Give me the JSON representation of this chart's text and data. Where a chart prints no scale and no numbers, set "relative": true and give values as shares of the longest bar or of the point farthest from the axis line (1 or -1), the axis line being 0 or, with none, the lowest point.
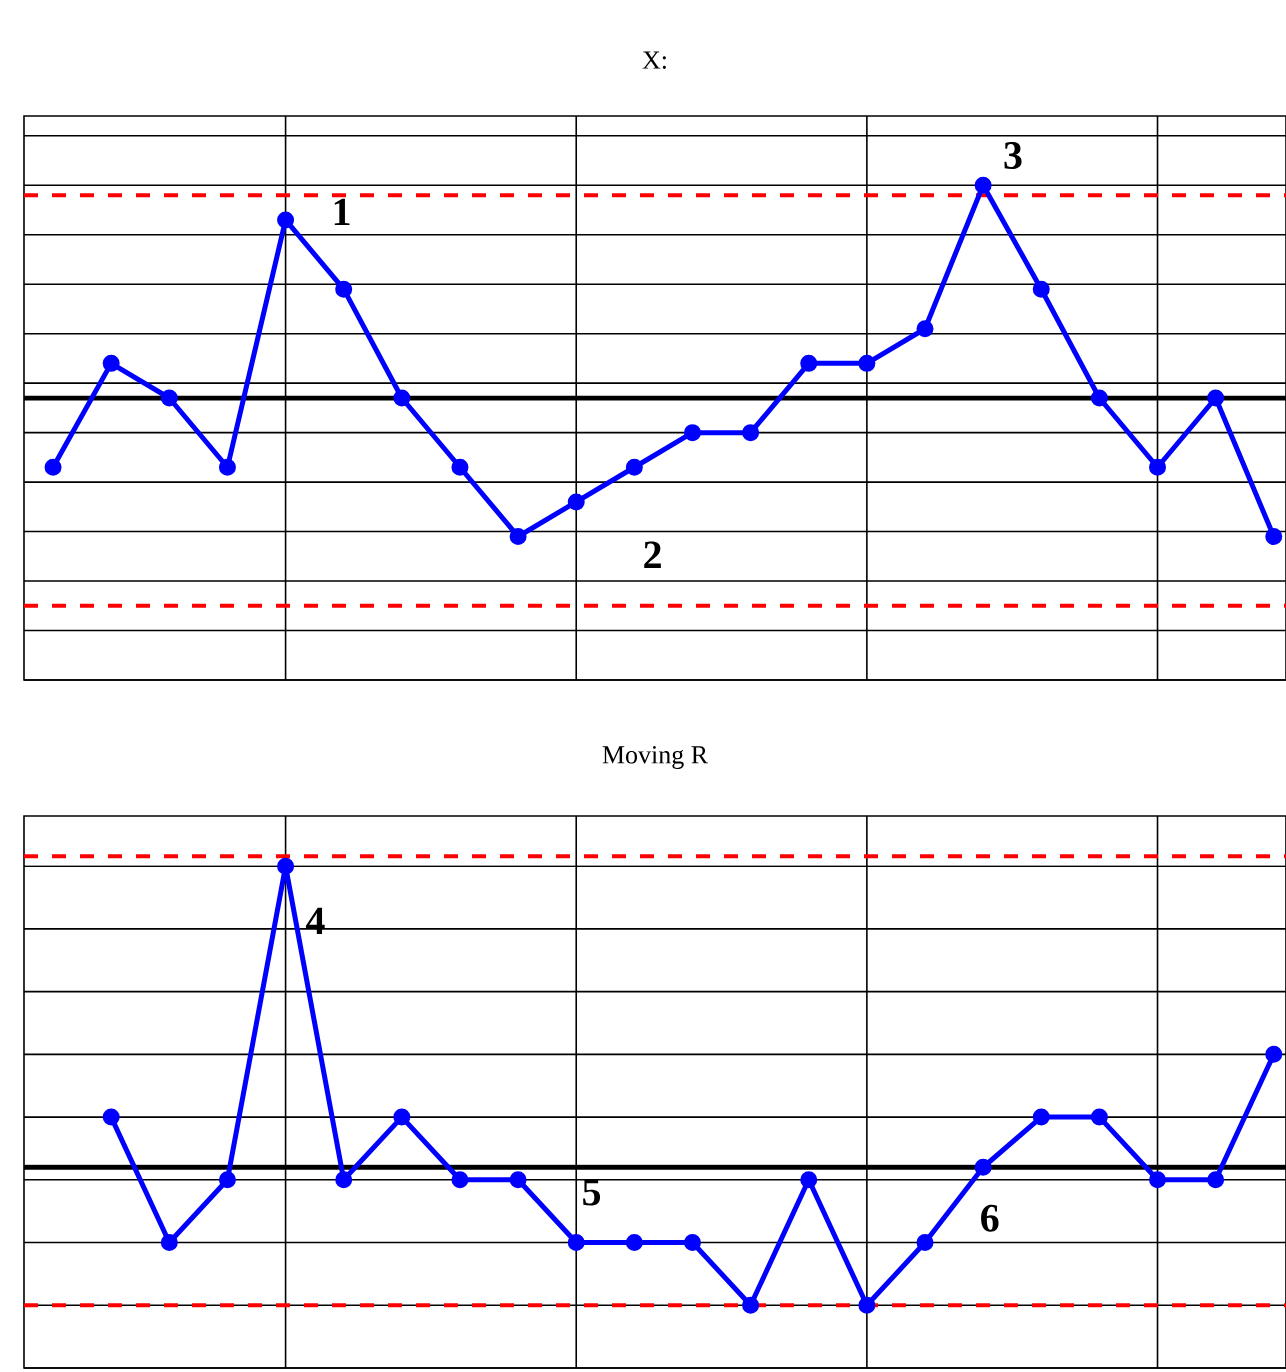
{
  "chart_data": [
    {
      "type": "line",
      "title": "X:",
      "relative": true,
      "categories": [
        null,
        null,
        null,
        null,
        null,
        null,
        null,
        null,
        null,
        null,
        null,
        null,
        null,
        null,
        null,
        null,
        null,
        null,
        null,
        null,
        null,
        null
      ],
      "series": [
        {
          "color": "#0000ff",
          "values": [
            0.43,
            0.64,
            0.57,
            0.43,
            0.93,
            0.79,
            0.57,
            0.43,
            0.29,
            0.36,
            0.43,
            0.5,
            0.5,
            0.64,
            0.64,
            0.71,
            1,
            0.79,
            0.57,
            0.43,
            0.57,
            0.29
          ]
        }
      ],
      "ref_lines": [
        {
          "axis": "y",
          "value": 0.57,
          "color": "#000000",
          "line_style": "solid"
        },
        {
          "axis": "y",
          "value": 0.98,
          "color": "#ff0000",
          "line_style": "dashed"
        },
        {
          "axis": "y",
          "value": 0.15,
          "color": "#ff0000",
          "line_style": "dashed"
        }
      ],
      "annotations": [
        "1",
        "2",
        "3"
      ],
      "grid": true,
      "marker": "circle",
      "line_style": "solid"
    },
    {
      "type": "line",
      "title": "Moving R",
      "relative": true,
      "categories": [
        null,
        null,
        null,
        null,
        null,
        null,
        null,
        null,
        null,
        null,
        null,
        null,
        null,
        null,
        null,
        null,
        null,
        null,
        null,
        null,
        null,
        null
      ],
      "series": [
        {
          "color": "#0000ff",
          "values": [
            null,
            0.5,
            0.25,
            0.375,
            1,
            0.375,
            0.5,
            0.375,
            0.375,
            0.25,
            0.25,
            0.25,
            0.125,
            0.375,
            0.125,
            0.25,
            0.4,
            0.5,
            0.5,
            0.375,
            0.375,
            0.625
          ]
        }
      ],
      "ref_lines": [
        {
          "axis": "y",
          "value": 0.4,
          "color": "#000000",
          "line_style": "solid"
        },
        {
          "axis": "y",
          "value": 1.02,
          "color": "#ff0000",
          "line_style": "dashed"
        },
        {
          "axis": "y",
          "value": 0.125,
          "color": "#ff0000",
          "line_style": "dashed"
        }
      ],
      "annotations": [
        "4",
        "5",
        "6"
      ],
      "grid": true,
      "marker": "circle",
      "line_style": "solid"
    }
  ]
}
